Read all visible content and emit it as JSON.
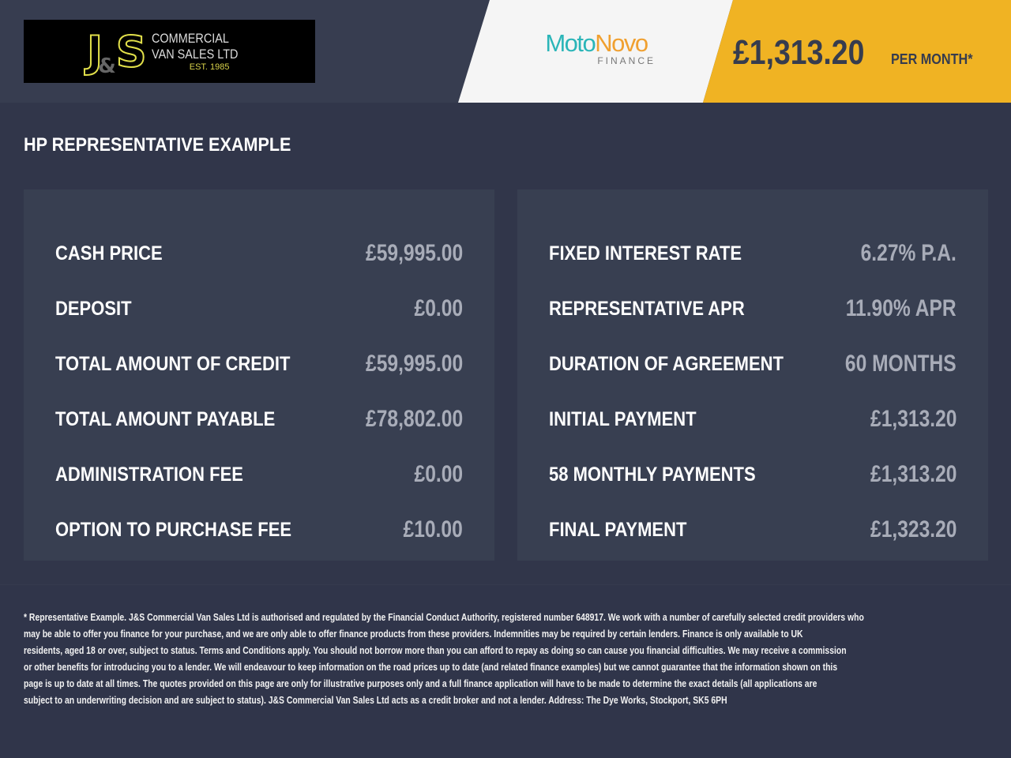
{
  "header": {
    "dealer_logo": {
      "initials": "J&S",
      "amp": "&",
      "line1": "COMMERCIAL",
      "line2": "VAN SALES LTD",
      "est": "EST. 1985"
    },
    "finance_logo": {
      "part1": "Moto",
      "part2": "Novo",
      "sub": "FINANCE"
    },
    "monthly_price": "£1,313.20",
    "per_month": "PER MONTH*"
  },
  "colors": {
    "accent": "#f0b323",
    "background": "#31364a",
    "panel": "#383f51",
    "motonovo_teal": "#2bb5b8",
    "motonovo_orange": "#f0a030"
  },
  "title": "HP REPRESENTATIVE EXAMPLE",
  "left_panel": [
    {
      "label": "CASH PRICE",
      "value": "£59,995.00"
    },
    {
      "label": "DEPOSIT",
      "value": "£0.00"
    },
    {
      "label": "TOTAL AMOUNT OF CREDIT",
      "value": "£59,995.00"
    },
    {
      "label": "TOTAL AMOUNT PAYABLE",
      "value": "£78,802.00"
    },
    {
      "label": "ADMINISTRATION FEE",
      "value": "£0.00"
    },
    {
      "label": "OPTION TO PURCHASE FEE",
      "value": "£10.00"
    }
  ],
  "right_panel": [
    {
      "label": "FIXED INTEREST RATE",
      "value": "6.27% P.A."
    },
    {
      "label": "REPRESENTATIVE APR",
      "value": "11.90% APR"
    },
    {
      "label": "DURATION OF AGREEMENT",
      "value": "60 MONTHS"
    },
    {
      "label": "INITIAL PAYMENT",
      "value": "£1,313.20"
    },
    {
      "label": "58 MONTHLY PAYMENTS",
      "value": "£1,313.20"
    },
    {
      "label": "FINAL PAYMENT",
      "value": "£1,323.20"
    }
  ],
  "footer_lines": [
    "* Representative Example. J&S Commercial Van Sales Ltd is authorised and regulated by the Financial Conduct Authority, registered number 648917. We work with a number of carefully selected credit providers who",
    "may be able to offer you finance for your purchase, and we are only able to offer finance products from these providers. Indemnities may be required by certain lenders. Finance is only available to UK",
    "residents, aged 18 or over, subject to status. Terms and Conditions apply. You should not borrow more than you can afford to repay as doing so can cause you financial difficulties. We may receive a commission",
    "or other benefits for introducing you to a lender. We will endeavour to keep information on the road prices up to date (and related finance examples) but we cannot guarantee that the information shown on this",
    "page is up to date at all times. The quotes provided on this page are only for illustrative purposes only and a full finance application will have to be made to determine the exact details (all applications are",
    "subject to an underwriting decision and are subject to status). J&S Commercial Van Sales Ltd acts as a credit broker and not a lender. Address: The Dye Works, Stockport, SK5 6PH"
  ]
}
